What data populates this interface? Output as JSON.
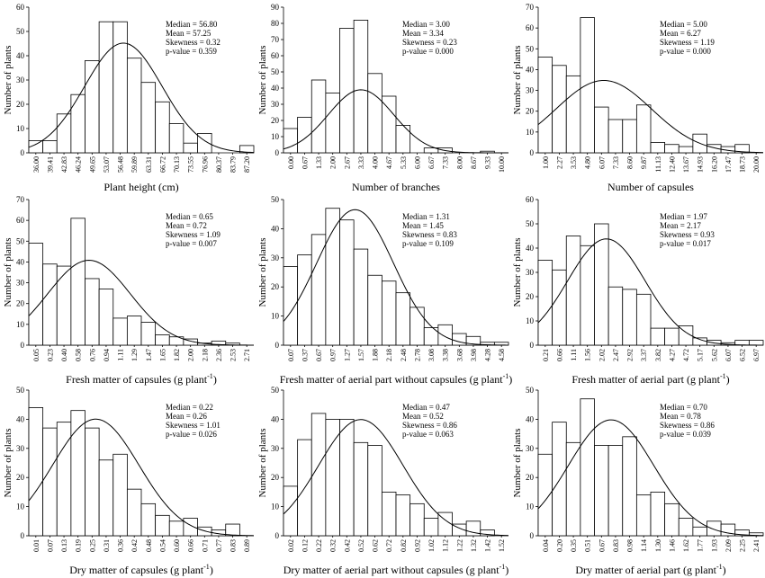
{
  "chart_data": [
    {
      "type": "bar",
      "title": "",
      "xlabel": "Plant height (cm)",
      "ylabel": "Number of plants",
      "categories": [
        "36.00",
        "39.41",
        "42.83",
        "46.24",
        "49.65",
        "53.07",
        "56.48",
        "59.89",
        "63.31",
        "66.72",
        "70.13",
        "73.55",
        "76.96",
        "80.37",
        "83.79",
        "87.20"
      ],
      "values": [
        5,
        5,
        16,
        24,
        38,
        54,
        54,
        39,
        29,
        21,
        12,
        4,
        8,
        0,
        0,
        3
      ],
      "ylim": [
        0,
        60
      ],
      "yticks": [
        0,
        10,
        20,
        30,
        40,
        50,
        60
      ],
      "curve": {
        "mean": 57.25,
        "sd": 9.4,
        "n": 312
      },
      "stats": [
        "Median = 56.80",
        "Mean = 57.25",
        "Skewness = 0.32",
        "p-value = 0.359"
      ]
    },
    {
      "type": "bar",
      "title": "",
      "xlabel": "Number of branches",
      "ylabel": "Number of plants",
      "categories": [
        "0.00",
        "0.67",
        "1.33",
        "2.00",
        "2.67",
        "3.33",
        "4.00",
        "4.67",
        "5.33",
        "6.00",
        "6.67",
        "7.33",
        "8.00",
        "8.67",
        "9.33",
        "10.00"
      ],
      "values": [
        15,
        22,
        45,
        37,
        77,
        82,
        49,
        35,
        17,
        0,
        3,
        3,
        0,
        0,
        1,
        0
      ],
      "ylim": [
        0,
        90
      ],
      "yticks": [
        0,
        10,
        20,
        30,
        40,
        50,
        60,
        70,
        80,
        90
      ],
      "curve": {
        "mean": 3.34,
        "sd": 1.55,
        "n": 227
      },
      "stats": [
        "Median = 3.00",
        "Mean = 3.34",
        "Skewness = 0.23",
        "p-value = 0.000"
      ]
    },
    {
      "type": "bar",
      "title": "",
      "xlabel": "Number of capsules",
      "ylabel": "Number of plants",
      "categories": [
        "1.00",
        "2.27",
        "3.53",
        "4.80",
        "6.07",
        "7.33",
        "8.60",
        "9.87",
        "11.13",
        "12.40",
        "13.67",
        "14.93",
        "16.20",
        "17.47",
        "18.73",
        "20.00"
      ],
      "values": [
        46,
        42,
        37,
        65,
        22,
        16,
        16,
        23,
        5,
        4,
        3,
        9,
        4,
        3,
        4,
        0
      ],
      "ylim": [
        0,
        70
      ],
      "yticks": [
        0,
        10,
        20,
        30,
        40,
        50,
        60,
        70
      ],
      "curve": {
        "mean": 6.27,
        "sd": 4.3,
        "n": 296
      },
      "stats": [
        "Median = 5.00",
        "Mean = 6.27",
        "Skewness = 1.19",
        "p-value = 0.000"
      ]
    },
    {
      "type": "bar",
      "title": "",
      "xlabel": "Fresh matter of capsules  (g plant",
      "xlabel_sup": "-1",
      "xlabel_end": ")",
      "ylabel": "Number of plants",
      "categories": [
        "0.05",
        "0.23",
        "0.40",
        "0.58",
        "0.76",
        "0.94",
        "1.11",
        "1.29",
        "1.47",
        "1.65",
        "1.82",
        "2.00",
        "2.18",
        "2.36",
        "2.53",
        "2.71"
      ],
      "values": [
        49,
        39,
        38,
        61,
        32,
        27,
        13,
        14,
        11,
        5,
        4,
        3,
        1,
        2,
        1,
        0
      ],
      "ylim": [
        0,
        70
      ],
      "yticks": [
        0,
        10,
        20,
        30,
        40,
        50,
        60,
        70
      ],
      "curve": {
        "mean": 0.72,
        "sd": 0.52,
        "n": 300
      },
      "stats": [
        "Median = 0.65",
        "Mean = 0.72",
        "Skewness = 1.09",
        "p-value = 0.007"
      ]
    },
    {
      "type": "bar",
      "title": "",
      "xlabel": "Fresh matter of aerial part without capsules  (g plant",
      "xlabel_sup": "-1",
      "xlabel_end": ")",
      "ylabel": "Number of plants",
      "categories": [
        "0.07",
        "0.37",
        "0.67",
        "0.97",
        "1.27",
        "1.57",
        "1.88",
        "2.18",
        "2.48",
        "2.78",
        "3.08",
        "3.38",
        "3.68",
        "3.98",
        "4.28",
        "4.58"
      ],
      "values": [
        27,
        31,
        38,
        47,
        43,
        33,
        24,
        22,
        18,
        13,
        6,
        7,
        4,
        3,
        1,
        1
      ],
      "ylim": [
        0,
        50
      ],
      "yticks": [
        0,
        10,
        20,
        30,
        40,
        50
      ],
      "curve": {
        "mean": 1.45,
        "sd": 0.82,
        "n": 318
      },
      "stats": [
        "Median = 1.31",
        "Mean = 1.45",
        "Skewness = 0.83",
        "p-value = 0.109"
      ]
    },
    {
      "type": "bar",
      "title": "",
      "xlabel": "Fresh matter of aerial part  (g plant",
      "xlabel_sup": "-1",
      "xlabel_end": ")",
      "ylabel": "Number of plants",
      "categories": [
        "0.21",
        "0.66",
        "1.11",
        "1.56",
        "2.02",
        "2.47",
        "2.92",
        "3.37",
        "3.82",
        "4.27",
        "4.72",
        "5.17",
        "5.62",
        "6.07",
        "6.52",
        "6.97"
      ],
      "values": [
        35,
        31,
        45,
        41,
        50,
        24,
        23,
        21,
        7,
        7,
        8,
        3,
        2,
        1,
        2,
        2
      ],
      "ylim": [
        0,
        60
      ],
      "yticks": [
        0,
        10,
        20,
        30,
        40,
        50,
        60
      ],
      "curve": {
        "mean": 2.17,
        "sd": 1.24,
        "n": 302
      },
      "stats": [
        "Median = 1.97",
        "Mean = 2.17",
        "Skewness = 0.93",
        "p-value = 0.017"
      ]
    },
    {
      "type": "bar",
      "title": "",
      "xlabel": "Dry matter of capsules  (g plant",
      "xlabel_sup": "-1",
      "xlabel_end": ")",
      "ylabel": "Number of plants",
      "categories": [
        "0.01",
        "0.07",
        "0.13",
        "0.19",
        "0.25",
        "0.31",
        "0.36",
        "0.42",
        "0.48",
        "0.54",
        "0.60",
        "0.66",
        "0.71",
        "0.77",
        "0.83",
        "0.89"
      ],
      "values": [
        44,
        37,
        39,
        43,
        37,
        26,
        28,
        16,
        11,
        7,
        5,
        6,
        3,
        2,
        4,
        0
      ],
      "ylim": [
        0,
        50
      ],
      "yticks": [
        0,
        10,
        20,
        30,
        40,
        50
      ],
      "curve": {
        "mean": 0.26,
        "sd": 0.18,
        "n": 308
      },
      "stats": [
        "Median = 0.22",
        "Mean = 0.26",
        "Skewness = 1.01",
        "p-value = 0.026"
      ]
    },
    {
      "type": "bar",
      "title": "",
      "xlabel": "Dry matter of aerial part without capsules  (g plant",
      "xlabel_sup": "-1",
      "xlabel_end": ")",
      "ylabel": "Number of plants",
      "categories": [
        "0.02",
        "0.12",
        "0.22",
        "0.32",
        "0.42",
        "0.52",
        "0.62",
        "0.72",
        "0.82",
        "0.92",
        "1.02",
        "1.12",
        "1.22",
        "1.32",
        "1.42",
        "1.52"
      ],
      "values": [
        17,
        33,
        42,
        40,
        40,
        32,
        31,
        15,
        14,
        11,
        6,
        8,
        4,
        5,
        2,
        0
      ],
      "ylim": [
        0,
        50
      ],
      "yticks": [
        0,
        10,
        20,
        30,
        40,
        50
      ],
      "curve": {
        "mean": 0.52,
        "sd": 0.3,
        "n": 300
      },
      "stats": [
        "Median = 0.47",
        "Mean = 0.52",
        "Skewness = 0.86",
        "p-value = 0.063"
      ]
    },
    {
      "type": "bar",
      "title": "",
      "xlabel": "Dry matter of aerial part  (g plant",
      "xlabel_sup": "-1",
      "xlabel_end": ")",
      "ylabel": "Number of plants",
      "categories": [
        "0.04",
        "0.20",
        "0.35",
        "0.51",
        "0.67",
        "0.83",
        "0.98",
        "1.14",
        "1.30",
        "1.46",
        "1.62",
        "1.77",
        "1.93",
        "2.09",
        "2.25",
        "2.41"
      ],
      "values": [
        28,
        39,
        32,
        47,
        31,
        31,
        34,
        14,
        15,
        11,
        6,
        3,
        5,
        4,
        2,
        1
      ],
      "ylim": [
        0,
        50
      ],
      "yticks": [
        0,
        10,
        20,
        30,
        40,
        50
      ],
      "curve": {
        "mean": 0.78,
        "sd": 0.48,
        "n": 303
      },
      "stats": [
        "Median = 0.70",
        "Mean = 0.78",
        "Skewness = 0.86",
        "p-value = 0.039"
      ]
    }
  ]
}
